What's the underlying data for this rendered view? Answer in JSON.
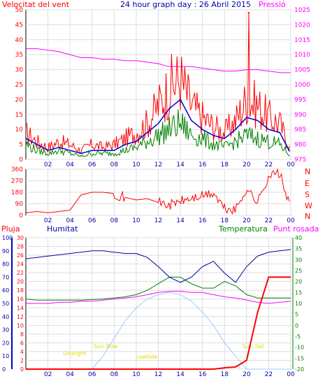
{
  "header": {
    "title": "24 hour graph day : 26 Abril 2015",
    "left_label": "Velocitat del vent",
    "right_label": "Pressió"
  },
  "colors": {
    "wind": "#ff0000",
    "gust_avg": "#0000cc",
    "wind_avg": "#008000",
    "pressure": "#ff00ff",
    "rain": "#ff0000",
    "humidity": "#00009c",
    "temperature": "#008000",
    "dewpoint": "#ff00ff",
    "solar": "#99ccff",
    "annotation": "#e0e000",
    "grid": "#dddddd",
    "frame": "#000000"
  },
  "x_axis": {
    "ticks": [
      "02",
      "04",
      "06",
      "08",
      "10",
      "12",
      "14",
      "16",
      "18",
      "20",
      "22",
      "00"
    ],
    "range_hours": [
      0,
      24
    ]
  },
  "wind_panel": {
    "left_ticks": [
      "0",
      "5",
      "10",
      "15",
      "20",
      "25",
      "30",
      "35",
      "40",
      "45",
      "50"
    ],
    "right_ticks": [
      "975",
      "980",
      "985",
      "990",
      "995",
      "1000",
      "1005",
      "1010",
      "1015",
      "1020",
      "1025"
    ],
    "ylim_left": [
      0,
      50
    ],
    "ylim_right": [
      975,
      1025
    ]
  },
  "direction_panel": {
    "left_ticks": [
      "0",
      "90",
      "180",
      "270",
      "360"
    ],
    "compass": [
      "N",
      "W",
      "S",
      "E",
      "N"
    ],
    "ylim": [
      0,
      360
    ]
  },
  "bottom_panel": {
    "labels": {
      "rain": "Pluja",
      "humidity": "Humitat",
      "temperature": "Temperatura",
      "dewpoint": "Punt rosada"
    },
    "rain_ticks": [
      "0",
      "2",
      "4",
      "6",
      "8",
      "10",
      "12",
      "14",
      "16",
      "18",
      "20",
      "22",
      "24",
      "26",
      "28",
      "30"
    ],
    "hum_ticks": [
      "0",
      "10",
      "20",
      "30",
      "40",
      "50",
      "60",
      "70",
      "80",
      "90",
      "100"
    ],
    "temp_ticks": [
      "-20",
      "-15",
      "-10",
      "-5",
      "0",
      "5",
      "10",
      "15",
      "20",
      "25",
      "30",
      "35",
      "40"
    ],
    "annotations": {
      "daylight": "Daylight",
      "sunrise": "Sun Rise",
      "lowtide": "Lowtide",
      "sunset": "Sun Set"
    }
  },
  "chart_data": [
    {
      "type": "line",
      "title": "24 hour graph day : 26 Abril 2015",
      "xlabel": "",
      "ylabel": "Velocitat del vent",
      "x": [
        0,
        1,
        2,
        3,
        4,
        5,
        6,
        7,
        8,
        9,
        10,
        11,
        12,
        13,
        14,
        15,
        16,
        17,
        18,
        19,
        20,
        21,
        22,
        23,
        24
      ],
      "ylim": [
        0,
        50
      ],
      "y2lim": [
        975,
        1025
      ],
      "series": [
        {
          "name": "Velocitat del vent",
          "axis": "left",
          "values": [
            9,
            6,
            4,
            6,
            5,
            3,
            5,
            4,
            5,
            7,
            9,
            12,
            18,
            24,
            27,
            18,
            14,
            11,
            9,
            13,
            20,
            18,
            14,
            12,
            3
          ],
          "peak": {
            "x": 20.2,
            "y": 49
          }
        },
        {
          "axis": "left",
          "values": [
            7,
            5,
            3,
            4,
            3,
            2,
            3,
            3,
            3,
            5,
            6,
            9,
            12,
            17,
            20,
            13,
            10,
            8,
            7,
            10,
            14,
            13,
            10,
            9,
            2
          ]
        },
        {
          "axis": "left",
          "values": [
            5,
            3,
            2,
            3,
            2,
            1,
            2,
            2,
            2,
            3,
            4,
            6,
            8,
            10,
            12,
            8,
            7,
            5,
            4,
            6,
            8,
            7,
            6,
            5,
            1
          ]
        },
        {
          "name": "Pressió",
          "axis": "right",
          "values": [
            1012,
            1012,
            1011.5,
            1011,
            1010,
            1009,
            1009,
            1008.5,
            1008.5,
            1008,
            1008,
            1007.5,
            1007,
            1006,
            1006,
            1006,
            1005.5,
            1005,
            1004.5,
            1004.5,
            1005,
            1005,
            1004.5,
            1004,
            1004
          ]
        }
      ]
    },
    {
      "type": "scatter",
      "ylabel": "",
      "ylim": [
        0,
        360
      ],
      "x": [
        0,
        1,
        2,
        3,
        4,
        5,
        6,
        7,
        8,
        9,
        10,
        11,
        12,
        13,
        14,
        15,
        16,
        17,
        18,
        19,
        20,
        21,
        22,
        23,
        24
      ],
      "series": [
        {
          "values": [
            20,
            30,
            20,
            30,
            40,
            160,
            180,
            180,
            170,
            140,
            120,
            130,
            100,
            80,
            110,
            130,
            150,
            170,
            50,
            40,
            210,
            100,
            310,
            330,
            40
          ]
        }
      ]
    },
    {
      "type": "line",
      "x": [
        0,
        1,
        2,
        3,
        4,
        5,
        6,
        7,
        8,
        9,
        10,
        11,
        12,
        13,
        14,
        15,
        16,
        17,
        18,
        19,
        20,
        21,
        22,
        23,
        24
      ],
      "ylim_rain": [
        0,
        30
      ],
      "ylim_hum": [
        0,
        100
      ],
      "ylim_temp": [
        -20,
        40
      ],
      "series": [
        {
          "name": "Pluja",
          "axis": "rain",
          "values": [
            0,
            0,
            0,
            0,
            0,
            0,
            0,
            0,
            0,
            0,
            0,
            0,
            0,
            0,
            0,
            0,
            0,
            0,
            0.3,
            0.5,
            2,
            13,
            21,
            21,
            21
          ]
        },
        {
          "name": "Humitat",
          "axis": "hum",
          "values": [
            84,
            85,
            86,
            87,
            88,
            89,
            90,
            90,
            89,
            88,
            88,
            85,
            78,
            70,
            66,
            70,
            78,
            82,
            73,
            66,
            78,
            86,
            89,
            90,
            91
          ]
        },
        {
          "name": "Temperatura",
          "axis": "temp",
          "values": [
            12,
            11.5,
            11.5,
            11.5,
            11.5,
            11.5,
            11.8,
            12,
            12.5,
            13,
            14,
            16,
            19,
            22,
            22,
            19,
            17,
            17,
            20,
            18,
            14,
            12.5,
            12.5,
            12.5,
            12.5
          ]
        },
        {
          "name": "Punt rosada",
          "axis": "temp",
          "values": [
            10,
            10,
            10,
            10.5,
            10.5,
            11,
            11,
            11.5,
            12,
            12.5,
            13,
            14,
            15,
            15.5,
            15.5,
            15,
            15,
            14,
            13,
            12.5,
            11.5,
            10.5,
            10,
            10.5,
            11
          ]
        },
        {
          "axis": "temp",
          "values": [
            -20,
            -20,
            -20,
            -20,
            -20,
            -20,
            -20,
            -14,
            -6,
            2,
            8,
            12,
            14,
            15,
            14,
            11,
            6,
            0,
            -8,
            -14,
            -20,
            -20,
            -20,
            -20,
            -20
          ]
        }
      ]
    }
  ]
}
